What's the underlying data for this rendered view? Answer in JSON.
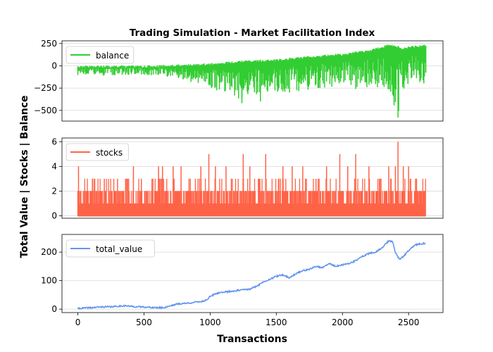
{
  "chart_data": {
    "type": "line",
    "title": "Trading Simulation - Market Facilitation Index",
    "xlabel": "Transactions",
    "ylabel": "Total Value | Stocks | Balance",
    "xlim": [
      -120,
      2760
    ],
    "x_ticks": [
      0,
      500,
      1000,
      1500,
      2000,
      2500
    ],
    "x_tick_labels": [
      "0",
      "500",
      "1000",
      "1500",
      "2000",
      "2500"
    ],
    "grid": "horizontal",
    "legend_position": "top-left",
    "panels": [
      {
        "series_name": "balance",
        "color": "#32cd32",
        "style": "oscillating",
        "ylim": [
          -620,
          280
        ],
        "y_ticks": [
          250,
          0,
          -250,
          -500
        ],
        "y_tick_labels": [
          "250",
          "0",
          "−250",
          "−500"
        ],
        "upper_envelope": {
          "x": [
            0,
            250,
            500,
            750,
            1000,
            1250,
            1500,
            1750,
            2000,
            2200,
            2350,
            2400,
            2450,
            2500,
            2630
          ],
          "y": [
            0,
            5,
            5,
            15,
            30,
            60,
            75,
            110,
            140,
            180,
            240,
            240,
            200,
            220,
            240
          ]
        },
        "lower_envelope": {
          "x": [
            0,
            250,
            500,
            750,
            850,
            1000,
            1200,
            1250,
            1400,
            1500,
            1600,
            1750,
            1900,
            2000,
            2100,
            2250,
            2350,
            2420,
            2450,
            2500,
            2630
          ],
          "y": [
            -120,
            -110,
            -100,
            -140,
            -180,
            -250,
            -350,
            -410,
            -280,
            -320,
            -300,
            -280,
            -260,
            -200,
            -250,
            -250,
            -330,
            -580,
            -300,
            -220,
            -200
          ]
        },
        "spikes": [
          {
            "x": 1240,
            "y": -420
          },
          {
            "x": 1380,
            "y": -400
          },
          {
            "x": 1600,
            "y": -300
          },
          {
            "x": 2100,
            "y": -260
          },
          {
            "x": 2420,
            "y": -580
          }
        ]
      },
      {
        "series_name": "stocks",
        "color": "#ff6347",
        "style": "integer-spikes",
        "ylim": [
          -0.2,
          6.3
        ],
        "y_ticks": [
          0,
          2,
          4,
          6
        ],
        "y_tick_labels": [
          "0",
          "2",
          "4",
          "6"
        ],
        "spikes": [
          {
            "x": 5,
            "y": 4
          },
          {
            "x": 110,
            "y": 3
          },
          {
            "x": 200,
            "y": 3
          },
          {
            "x": 300,
            "y": 3
          },
          {
            "x": 420,
            "y": 4
          },
          {
            "x": 480,
            "y": 3
          },
          {
            "x": 610,
            "y": 4
          },
          {
            "x": 640,
            "y": 4
          },
          {
            "x": 720,
            "y": 4
          },
          {
            "x": 780,
            "y": 4
          },
          {
            "x": 850,
            "y": 3
          },
          {
            "x": 930,
            "y": 4
          },
          {
            "x": 990,
            "y": 5
          },
          {
            "x": 1040,
            "y": 4
          },
          {
            "x": 1120,
            "y": 4
          },
          {
            "x": 1250,
            "y": 5
          },
          {
            "x": 1300,
            "y": 4
          },
          {
            "x": 1420,
            "y": 5
          },
          {
            "x": 1550,
            "y": 4
          },
          {
            "x": 1620,
            "y": 4
          },
          {
            "x": 1700,
            "y": 4
          },
          {
            "x": 1800,
            "y": 3
          },
          {
            "x": 1880,
            "y": 4
          },
          {
            "x": 1980,
            "y": 5
          },
          {
            "x": 2040,
            "y": 4
          },
          {
            "x": 2100,
            "y": 5
          },
          {
            "x": 2200,
            "y": 4
          },
          {
            "x": 2280,
            "y": 3
          },
          {
            "x": 2350,
            "y": 4
          },
          {
            "x": 2400,
            "y": 4
          },
          {
            "x": 2420,
            "y": 6
          },
          {
            "x": 2460,
            "y": 4
          },
          {
            "x": 2500,
            "y": 4
          },
          {
            "x": 2560,
            "y": 3
          }
        ]
      },
      {
        "series_name": "total_value",
        "color": "#6495ed",
        "style": "line",
        "ylim": [
          -12,
          262
        ],
        "y_ticks": [
          0,
          100,
          200
        ],
        "y_tick_labels": [
          "0",
          "100",
          "200"
        ],
        "x": [
          0,
          50,
          100,
          150,
          200,
          250,
          300,
          350,
          400,
          450,
          500,
          550,
          600,
          650,
          700,
          750,
          800,
          850,
          900,
          950,
          980,
          1000,
          1050,
          1100,
          1150,
          1200,
          1250,
          1300,
          1350,
          1400,
          1450,
          1500,
          1550,
          1600,
          1650,
          1700,
          1750,
          1800,
          1850,
          1900,
          1950,
          2000,
          2050,
          2100,
          2150,
          2200,
          2250,
          2300,
          2350,
          2380,
          2400,
          2430,
          2450,
          2500,
          2550,
          2600,
          2630
        ],
        "y": [
          2,
          4,
          5,
          7,
          8,
          8,
          10,
          12,
          10,
          8,
          8,
          6,
          5,
          5,
          12,
          18,
          20,
          22,
          25,
          28,
          35,
          45,
          55,
          60,
          62,
          65,
          68,
          70,
          80,
          95,
          105,
          115,
          120,
          110,
          125,
          135,
          140,
          150,
          145,
          160,
          150,
          155,
          160,
          170,
          185,
          195,
          200,
          215,
          240,
          235,
          200,
          175,
          180,
          205,
          225,
          230,
          230
        ]
      }
    ]
  }
}
